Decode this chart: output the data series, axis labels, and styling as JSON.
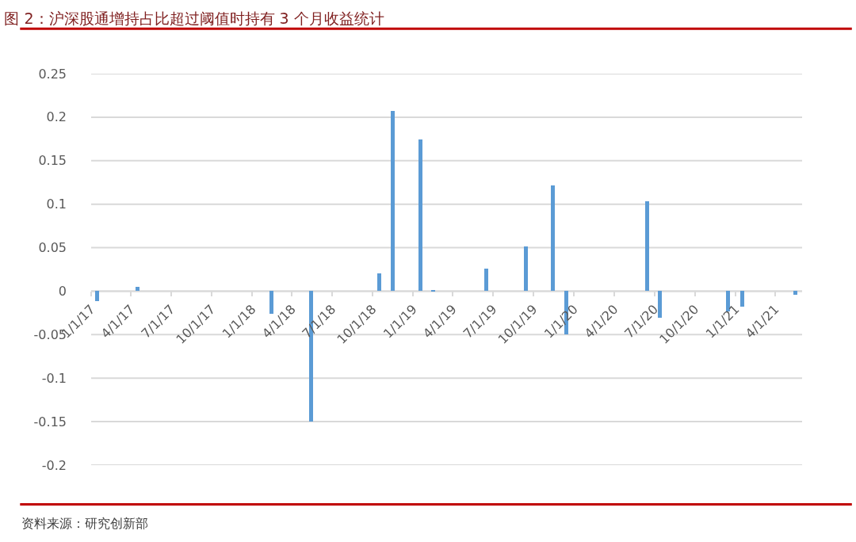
{
  "chart_data": {
    "type": "bar",
    "title": "图 2：沪深股通增持占比超过阈值时持有 3 个月收益统计",
    "annotations": [
      "资料来源：研究创新部"
    ],
    "x": [
      "2017-01-15",
      "2017-04-17",
      "2018-02-14",
      "2018-05-15",
      "2018-10-17",
      "2018-11-16",
      "2019-01-17",
      "2019-02-16",
      "2019-06-15",
      "2019-09-14",
      "2019-11-14",
      "2019-12-15",
      "2020-06-15",
      "2020-07-14",
      "2020-12-15",
      "2021-01-17",
      "2021-05-17"
    ],
    "values": [
      -0.011,
      0.005,
      -0.026,
      -0.15,
      0.02,
      0.207,
      0.174,
      0.001,
      0.026,
      0.051,
      0.122,
      -0.05,
      0.103,
      -0.031,
      -0.023,
      -0.018,
      -0.004
    ],
    "color": "#5b9bd5",
    "xlim": [
      "2017-01-01",
      "2021-06-01"
    ],
    "xticks": [
      {
        "value": "2017-01-01",
        "label": "1/1/17"
      },
      {
        "value": "2017-04-01",
        "label": "4/1/17"
      },
      {
        "value": "2017-07-01",
        "label": "7/1/17"
      },
      {
        "value": "2017-10-01",
        "label": "10/1/17"
      },
      {
        "value": "2018-01-01",
        "label": "1/1/18"
      },
      {
        "value": "2018-04-01",
        "label": "4/1/18"
      },
      {
        "value": "2018-07-01",
        "label": "7/1/18"
      },
      {
        "value": "2018-10-01",
        "label": "10/1/18"
      },
      {
        "value": "2019-01-01",
        "label": "1/1/19"
      },
      {
        "value": "2019-04-01",
        "label": "4/1/19"
      },
      {
        "value": "2019-07-01",
        "label": "7/1/19"
      },
      {
        "value": "2019-10-01",
        "label": "10/1/19"
      },
      {
        "value": "2020-01-01",
        "label": "1/1/20"
      },
      {
        "value": "2020-04-01",
        "label": "4/1/20"
      },
      {
        "value": "2020-07-01",
        "label": "7/1/20"
      },
      {
        "value": "2020-10-01",
        "label": "10/1/20"
      },
      {
        "value": "2021-01-01",
        "label": "1/1/21"
      },
      {
        "value": "2021-04-01",
        "label": "4/1/21"
      }
    ],
    "ylim": [
      -0.2,
      0.25
    ],
    "yticks": [
      -0.2,
      -0.15,
      -0.1,
      -0.05,
      0,
      0.05,
      0.1,
      0.15,
      0.2,
      0.25
    ],
    "grid": "y"
  }
}
